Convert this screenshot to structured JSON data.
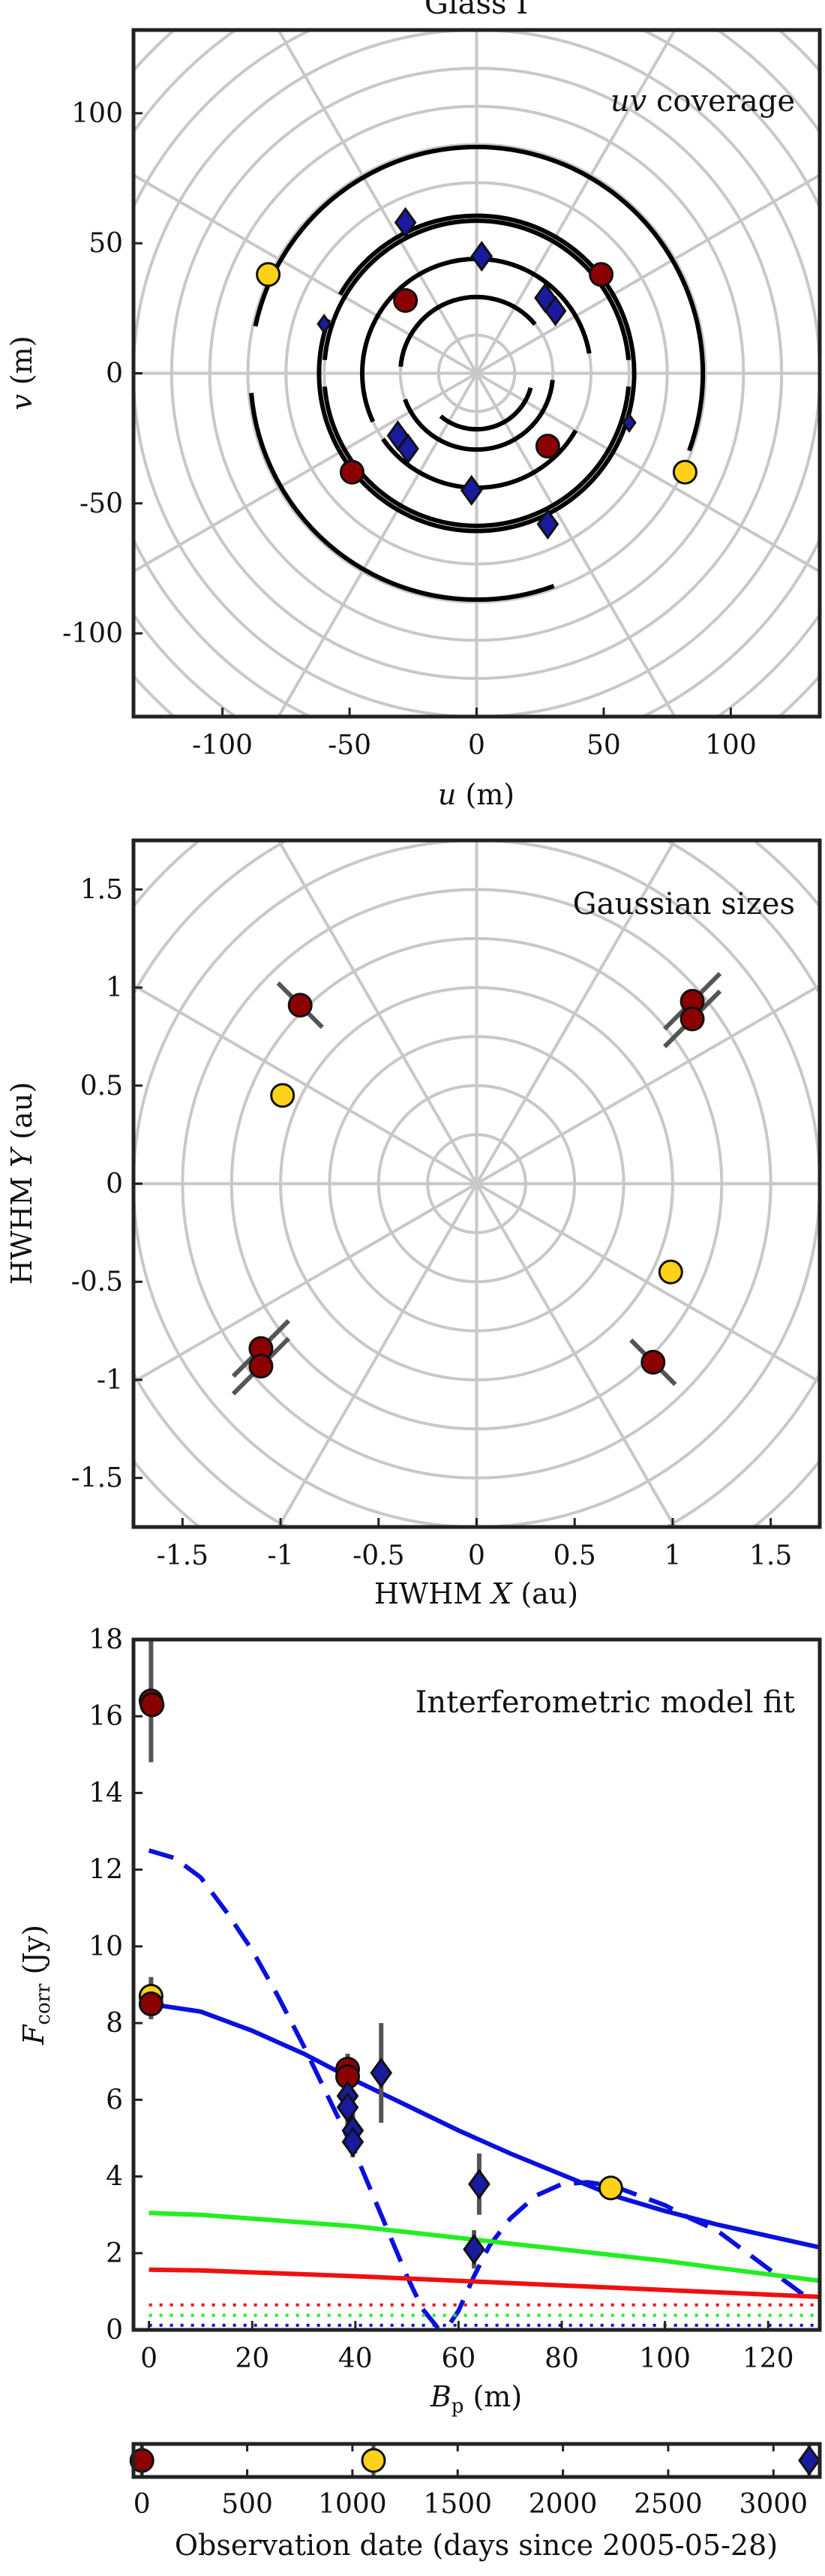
{
  "page_title": "Glass I",
  "chart_data": [
    {
      "type": "scatter",
      "id": "uv",
      "title": "uv coverage",
      "title_italic": "uv",
      "title_rest": " coverage",
      "xlabel_var": "u",
      "xlabel_unit": " (m)",
      "ylabel_var": "v",
      "ylabel_unit": " (m)",
      "xlim": [
        -135,
        135
      ],
      "ylim": [
        -132,
        132
      ],
      "xticks": [
        -100,
        -50,
        0,
        50,
        100
      ],
      "yticks": [
        -100,
        -50,
        0,
        50,
        100
      ],
      "grid": "polar",
      "polar_radii": [
        15,
        30,
        45,
        60,
        75,
        90,
        105,
        120,
        135,
        150,
        165,
        180
      ],
      "polar_angles_deg": [
        0,
        30,
        60,
        90,
        120,
        150
      ],
      "tracks": [
        {
          "r": 89,
          "from_deg": -20,
          "to_deg": 168
        },
        {
          "r": 89,
          "from_deg": 185,
          "to_deg": 290
        },
        {
          "r": 62,
          "from_deg": -30,
          "to_deg": 150
        },
        {
          "r": 62,
          "from_deg": 160,
          "to_deg": 330
        },
        {
          "r": 60,
          "from_deg": 5,
          "to_deg": 175
        },
        {
          "r": 60,
          "from_deg": 185,
          "to_deg": 355
        },
        {
          "r": 45,
          "from_deg": 10,
          "to_deg": 205
        },
        {
          "r": 45,
          "from_deg": 215,
          "to_deg": 330
        },
        {
          "r": 30,
          "from_deg": 40,
          "to_deg": 175
        },
        {
          "r": 30,
          "from_deg": 200,
          "to_deg": 355
        },
        {
          "r": 22,
          "from_deg": 230,
          "to_deg": 345
        }
      ],
      "points": [
        {
          "u": -82,
          "v": 38,
          "marker": "circle",
          "color": "#ffd21a"
        },
        {
          "u": 82,
          "v": -38,
          "marker": "circle",
          "color": "#ffd21a"
        },
        {
          "u": -28,
          "v": 28,
          "marker": "circle",
          "color": "#8b0000"
        },
        {
          "u": 28,
          "v": -28,
          "marker": "circle",
          "color": "#8b0000"
        },
        {
          "u": 49,
          "v": 38,
          "marker": "circle",
          "color": "#8b0000"
        },
        {
          "u": -49,
          "v": -38,
          "marker": "circle",
          "color": "#8b0000"
        },
        {
          "u": 2,
          "v": 45,
          "marker": "diamond",
          "color": "#1a1a9e"
        },
        {
          "u": -2,
          "v": -45,
          "marker": "diamond",
          "color": "#1a1a9e"
        },
        {
          "u": -28,
          "v": 58,
          "marker": "diamond",
          "color": "#1a1a9e"
        },
        {
          "u": 28,
          "v": -58,
          "marker": "diamond",
          "color": "#1a1a9e"
        },
        {
          "u": 27,
          "v": 29,
          "marker": "diamond",
          "color": "#1a1a9e"
        },
        {
          "u": 31,
          "v": 24,
          "marker": "diamond",
          "color": "#1a1a9e"
        },
        {
          "u": -31,
          "v": -24,
          "marker": "diamond",
          "color": "#1a1a9e"
        },
        {
          "u": -27,
          "v": -29,
          "marker": "diamond",
          "color": "#1a1a9e"
        },
        {
          "u": -60,
          "v": 19,
          "marker": "diamond-small",
          "color": "#1a1a9e"
        },
        {
          "u": 60,
          "v": -19,
          "marker": "diamond-small",
          "color": "#1a1a9e"
        }
      ]
    },
    {
      "type": "scatter",
      "id": "gauss",
      "title": "Gaussian sizes",
      "xlabel_pre": "HWHM ",
      "xlabel_var": "X",
      "xlabel_unit": " (au)",
      "ylabel_pre": "HWHM ",
      "ylabel_var": "Y",
      "ylabel_unit": " (au)",
      "xlim": [
        -1.75,
        1.75
      ],
      "ylim": [
        -1.75,
        1.75
      ],
      "xticks": [
        -1.5,
        -1,
        -0.5,
        0,
        0.5,
        1,
        1.5
      ],
      "yticks": [
        -1.5,
        -1,
        -0.5,
        0,
        0.5,
        1,
        1.5
      ],
      "grid": "polar",
      "polar_radii": [
        0.25,
        0.5,
        0.75,
        1.0,
        1.25,
        1.5,
        1.75,
        2.0,
        2.25,
        2.5
      ],
      "polar_angles_deg": [
        0,
        30,
        60,
        90,
        120,
        150
      ],
      "points": [
        {
          "x": -0.9,
          "y": 0.91,
          "marker": "circle",
          "color": "#8b0000",
          "err_len": 0.16,
          "err_angle_deg": 135
        },
        {
          "x": 0.9,
          "y": -0.91,
          "marker": "circle",
          "color": "#8b0000",
          "err_len": 0.16,
          "err_angle_deg": 135
        },
        {
          "x": 1.1,
          "y": 0.93,
          "marker": "circle",
          "color": "#8b0000",
          "err_len": 0.2,
          "err_angle_deg": 45
        },
        {
          "x": 1.1,
          "y": 0.84,
          "marker": "circle",
          "color": "#8b0000",
          "err_len": 0.2,
          "err_angle_deg": 45
        },
        {
          "x": -1.1,
          "y": -0.84,
          "marker": "circle",
          "color": "#8b0000",
          "err_len": 0.2,
          "err_angle_deg": 45
        },
        {
          "x": -1.1,
          "y": -0.93,
          "marker": "circle",
          "color": "#8b0000",
          "err_len": 0.2,
          "err_angle_deg": 45
        },
        {
          "x": -0.99,
          "y": 0.45,
          "marker": "circle",
          "color": "#ffd21a"
        },
        {
          "x": 0.99,
          "y": -0.45,
          "marker": "circle",
          "color": "#ffd21a"
        }
      ]
    },
    {
      "type": "line",
      "id": "fit",
      "title": "Interferometric model fit",
      "xlabel_var": "B",
      "xlabel_sub": "p",
      "xlabel_unit": " (m)",
      "ylabel_var": "F",
      "ylabel_sub": "corr",
      "ylabel_unit": " (Jy)",
      "xlim": [
        -3,
        130
      ],
      "ylim": [
        0,
        18
      ],
      "xticks": [
        0,
        20,
        40,
        60,
        80,
        100,
        120
      ],
      "yticks": [
        0,
        2,
        4,
        6,
        8,
        10,
        12,
        14,
        16,
        18
      ],
      "grid": "off",
      "series": [
        {
          "style": "solid",
          "color": "#0a10dd",
          "x": [
            0,
            10,
            20,
            30,
            40,
            50,
            60,
            70,
            80,
            90,
            100,
            110,
            120,
            130
          ],
          "y": [
            8.5,
            8.3,
            7.8,
            7.2,
            6.5,
            5.85,
            5.2,
            4.6,
            4.05,
            3.5,
            3.1,
            2.75,
            2.45,
            2.15
          ]
        },
        {
          "style": "dashed",
          "color": "#0a10dd",
          "x": [
            0,
            5,
            10,
            15,
            20,
            25,
            30,
            35,
            40,
            45,
            50,
            53,
            56,
            58,
            60,
            63,
            66,
            70,
            75,
            80,
            85,
            90,
            95,
            100,
            105,
            110,
            115,
            120,
            125,
            128
          ],
          "y": [
            12.5,
            12.3,
            11.8,
            10.9,
            9.9,
            8.7,
            7.4,
            6.0,
            4.6,
            3.0,
            1.4,
            0.55,
            0.05,
            0.1,
            0.5,
            1.4,
            2.2,
            2.9,
            3.5,
            3.8,
            3.85,
            3.75,
            3.5,
            3.25,
            2.9,
            2.6,
            2.1,
            1.6,
            1.1,
            0.8
          ]
        },
        {
          "style": "solid",
          "color": "#22ee22",
          "x": [
            0,
            10,
            20,
            30,
            40,
            50,
            60,
            70,
            80,
            90,
            100,
            110,
            120,
            130
          ],
          "y": [
            3.05,
            3.0,
            2.9,
            2.8,
            2.7,
            2.55,
            2.4,
            2.25,
            2.1,
            1.95,
            1.8,
            1.62,
            1.45,
            1.28
          ]
        },
        {
          "style": "solid",
          "color": "#ee1111",
          "x": [
            0,
            10,
            20,
            30,
            40,
            50,
            60,
            70,
            80,
            90,
            100,
            110,
            120,
            130
          ],
          "y": [
            1.57,
            1.55,
            1.5,
            1.45,
            1.4,
            1.34,
            1.28,
            1.22,
            1.16,
            1.1,
            1.04,
            0.98,
            0.92,
            0.86
          ]
        },
        {
          "style": "dotted",
          "color": "#ee1111",
          "x": [
            0,
            130
          ],
          "y": [
            0.65,
            0.65
          ]
        },
        {
          "style": "dotted",
          "color": "#22ee22",
          "x": [
            0,
            130
          ],
          "y": [
            0.38,
            0.38
          ]
        },
        {
          "style": "dotted",
          "color": "#0a10dd",
          "x": [
            0,
            130
          ],
          "y": [
            0.12,
            0.12
          ]
        }
      ],
      "points": [
        {
          "x": 0.4,
          "y": 16.4,
          "marker": "circle",
          "color": "#8b0000",
          "err": 1.6
        },
        {
          "x": 0.6,
          "y": 16.3,
          "marker": "circle",
          "color": "#8b0000",
          "err": 0
        },
        {
          "x": 0.4,
          "y": 8.7,
          "marker": "circle",
          "color": "#ffd21a",
          "err": 0.5
        },
        {
          "x": 0.4,
          "y": 8.5,
          "marker": "circle",
          "color": "#8b0000",
          "err": 0.4
        },
        {
          "x": 38.5,
          "y": 6.8,
          "marker": "circle",
          "color": "#8b0000",
          "err": 0.4
        },
        {
          "x": 38.5,
          "y": 6.6,
          "marker": "circle",
          "color": "#8b0000",
          "err": 0.3
        },
        {
          "x": 38.5,
          "y": 6.1,
          "marker": "diamond",
          "color": "#1a1a9e",
          "err": 0.7
        },
        {
          "x": 38.5,
          "y": 5.8,
          "marker": "diamond",
          "color": "#1a1a9e",
          "err": 0.5
        },
        {
          "x": 39.5,
          "y": 5.2,
          "marker": "diamond",
          "color": "#1a1a9e",
          "err": 0.5
        },
        {
          "x": 39.5,
          "y": 4.9,
          "marker": "diamond",
          "color": "#1a1a9e",
          "err": 0.4
        },
        {
          "x": 45,
          "y": 6.7,
          "marker": "diamond",
          "color": "#1a1a9e",
          "err": 1.3
        },
        {
          "x": 64,
          "y": 3.8,
          "marker": "diamond",
          "color": "#1a1a9e",
          "err": 0.8
        },
        {
          "x": 63,
          "y": 2.1,
          "marker": "diamond",
          "color": "#1a1a9e",
          "err": 0.5
        },
        {
          "x": 89.5,
          "y": 3.7,
          "marker": "circle",
          "color": "#ffd21a",
          "err": 0
        }
      ]
    },
    {
      "type": "scatter",
      "id": "dates",
      "xlabel": "Observation date (days since 2005-05-28)",
      "xlim": [
        -40,
        3220
      ],
      "xticks": [
        0,
        500,
        1000,
        1500,
        2000,
        2500,
        3000
      ],
      "points": [
        {
          "x": 0,
          "marker": "circle",
          "color": "#8b0000"
        },
        {
          "x": 1100,
          "marker": "circle",
          "color": "#ffd21a"
        },
        {
          "x": 3170,
          "marker": "diamond",
          "color": "#1a1a9e"
        }
      ]
    }
  ]
}
